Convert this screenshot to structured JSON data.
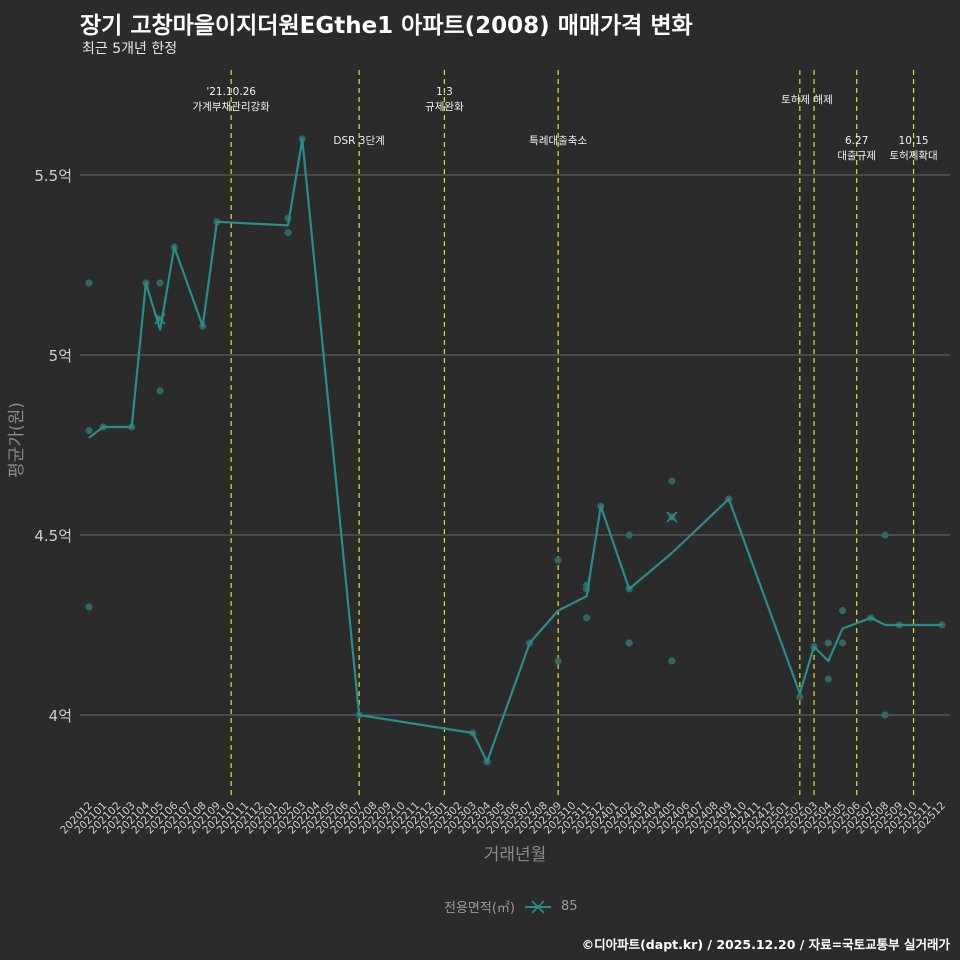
{
  "title": "장기 고창마을이지더원EGthe1 아파트(2008) 매매가격 변화",
  "subtitle": "최근 5개년 한정",
  "caption": "©디아파트(dapt.kr) / 2025.12.20 / 자료=국토교통부 실거래가",
  "legend": {
    "title": "전용면적(㎡)",
    "value": "85"
  },
  "colors": {
    "background": "#2b2b2b",
    "series": "#2a8c8c",
    "points": "#2f6b67",
    "annotation": "#e4e12a",
    "grid": "#6a6a6a",
    "text": "#cfcfcf"
  },
  "chart_data": {
    "type": "line",
    "title": "장기 고창마을이지더원EGthe1 아파트(2008) 매매가격 변화",
    "xlabel": "거래년월",
    "ylabel": "평균가(원)",
    "ylim": [
      3.8,
      5.8
    ],
    "yticks": [
      {
        "value": 4.0,
        "label": "4억"
      },
      {
        "value": 4.5,
        "label": "4.5억"
      },
      {
        "value": 5.0,
        "label": "5억"
      },
      {
        "value": 5.5,
        "label": "5.5억"
      }
    ],
    "categories": [
      "202012",
      "202101",
      "202102",
      "202103",
      "202104",
      "202105",
      "202106",
      "202107",
      "202108",
      "202109",
      "202110",
      "202111",
      "202112",
      "202201",
      "202202",
      "202203",
      "202204",
      "202205",
      "202206",
      "202207",
      "202208",
      "202209",
      "202210",
      "202211",
      "202212",
      "202301",
      "202302",
      "202303",
      "202304",
      "202305",
      "202306",
      "202307",
      "202308",
      "202309",
      "202310",
      "202311",
      "202312",
      "202401",
      "202402",
      "202403",
      "202404",
      "202405",
      "202406",
      "202407",
      "202408",
      "202409",
      "202410",
      "202411",
      "202412",
      "202501",
      "202502",
      "202503",
      "202504",
      "202505",
      "202506",
      "202507",
      "202508",
      "202509",
      "202510",
      "202511",
      "202512"
    ],
    "series": [
      {
        "name": "85",
        "line": [
          {
            "x": "202012",
            "y": 4.77
          },
          {
            "x": "202101",
            "y": 4.8
          },
          {
            "x": "202103",
            "y": 4.8
          },
          {
            "x": "202104",
            "y": 5.2
          },
          {
            "x": "202105",
            "y": 5.07
          },
          {
            "x": "202106",
            "y": 5.3
          },
          {
            "x": "202108",
            "y": 5.08
          },
          {
            "x": "202109",
            "y": 5.37
          },
          {
            "x": "202202",
            "y": 5.36
          },
          {
            "x": "202203",
            "y": 5.6
          },
          {
            "x": "202207",
            "y": 4.0
          },
          {
            "x": "202303",
            "y": 3.95
          },
          {
            "x": "202304",
            "y": 3.87
          },
          {
            "x": "202307",
            "y": 4.2
          },
          {
            "x": "202309",
            "y": 4.29
          },
          {
            "x": "202311",
            "y": 4.33
          },
          {
            "x": "202312",
            "y": 4.58
          },
          {
            "x": "202402",
            "y": 4.35
          },
          {
            "x": "202405",
            "y": 4.45
          },
          {
            "x": "202409",
            "y": 4.6
          },
          {
            "x": "202502",
            "y": 4.06
          },
          {
            "x": "202503",
            "y": 4.19
          },
          {
            "x": "202504",
            "y": 4.15
          },
          {
            "x": "202505",
            "y": 4.24
          },
          {
            "x": "202507",
            "y": 4.27
          },
          {
            "x": "202508",
            "y": 4.25
          },
          {
            "x": "202512",
            "y": 4.25
          }
        ],
        "points": [
          {
            "x": "202012",
            "y": 5.2
          },
          {
            "x": "202012",
            "y": 4.79
          },
          {
            "x": "202012",
            "y": 4.3
          },
          {
            "x": "202101",
            "y": 4.8
          },
          {
            "x": "202103",
            "y": 4.8
          },
          {
            "x": "202104",
            "y": 5.2
          },
          {
            "x": "202105",
            "y": 5.2
          },
          {
            "x": "202105",
            "y": 5.1
          },
          {
            "x": "202105",
            "y": 4.9
          },
          {
            "x": "202106",
            "y": 5.3
          },
          {
            "x": "202108",
            "y": 5.08
          },
          {
            "x": "202109",
            "y": 5.37
          },
          {
            "x": "202202",
            "y": 5.38
          },
          {
            "x": "202202",
            "y": 5.34
          },
          {
            "x": "202203",
            "y": 5.6
          },
          {
            "x": "202207",
            "y": 4.0
          },
          {
            "x": "202303",
            "y": 3.95
          },
          {
            "x": "202304",
            "y": 3.87
          },
          {
            "x": "202307",
            "y": 4.2
          },
          {
            "x": "202309",
            "y": 4.43
          },
          {
            "x": "202309",
            "y": 4.15
          },
          {
            "x": "202311",
            "y": 4.36
          },
          {
            "x": "202311",
            "y": 4.35
          },
          {
            "x": "202311",
            "y": 4.27
          },
          {
            "x": "202312",
            "y": 4.58
          },
          {
            "x": "202402",
            "y": 4.5
          },
          {
            "x": "202402",
            "y": 4.35
          },
          {
            "x": "202402",
            "y": 4.2
          },
          {
            "x": "202405",
            "y": 4.65
          },
          {
            "x": "202405",
            "y": 4.55
          },
          {
            "x": "202405",
            "y": 4.15
          },
          {
            "x": "202409",
            "y": 4.6
          },
          {
            "x": "202502",
            "y": 4.05
          },
          {
            "x": "202503",
            "y": 4.19
          },
          {
            "x": "202504",
            "y": 4.2
          },
          {
            "x": "202504",
            "y": 4.1
          },
          {
            "x": "202505",
            "y": 4.29
          },
          {
            "x": "202505",
            "y": 4.2
          },
          {
            "x": "202507",
            "y": 4.27
          },
          {
            "x": "202508",
            "y": 4.5
          },
          {
            "x": "202508",
            "y": 4.0
          },
          {
            "x": "202509",
            "y": 4.25
          },
          {
            "x": "202512",
            "y": 4.25
          }
        ],
        "crosses": [
          {
            "x": "202105",
            "y": 5.1
          },
          {
            "x": "202405",
            "y": 4.55
          }
        ]
      }
    ],
    "annotations": [
      {
        "x": "202110",
        "lines": [
          "'21.10.26",
          "가계부채관리강화"
        ],
        "level": "top"
      },
      {
        "x": "202207",
        "lines": [
          "DSR 3단계"
        ],
        "level": "low"
      },
      {
        "x": "202301",
        "lines": [
          "1.3",
          "규제완화"
        ],
        "level": "top"
      },
      {
        "x": "202309",
        "lines": [
          "특례대출축소"
        ],
        "level": "low"
      },
      {
        "x": "202502",
        "lines": [
          "토허제 해제"
        ],
        "level": "mid",
        "ref": "202503"
      },
      {
        "x": "202503",
        "lines": [],
        "level": "none"
      },
      {
        "x": "202506",
        "lines": [
          "6.27",
          "대출규제"
        ],
        "level": "low"
      },
      {
        "x": "202510",
        "lines": [
          "10.15",
          "토허제확대"
        ],
        "level": "low"
      }
    ]
  }
}
